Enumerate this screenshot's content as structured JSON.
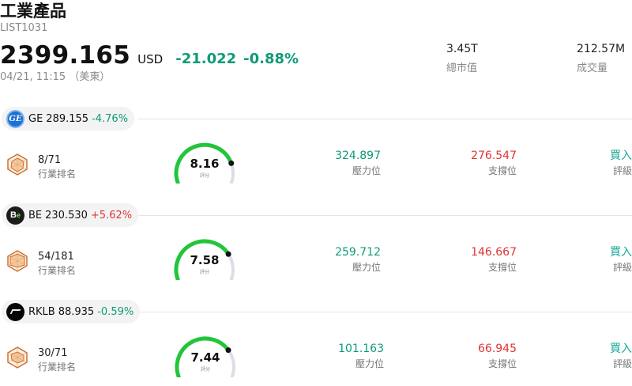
{
  "header": {
    "title": "工業產品",
    "code": "LIST1031",
    "price": "2399.165",
    "currency": "USD",
    "change": "-21.022",
    "change_pct": "-0.88%",
    "time": "04/21, 11:15 （美東）",
    "market_cap_value": "3.45T",
    "market_cap_label": "總市值",
    "volume_value": "212.57M",
    "volume_label": "成交量"
  },
  "colors": {
    "up": "#e03434",
    "down": "#0f9b77",
    "gauge_fill": "#22c53a",
    "gauge_track": "#dddde6",
    "radar": "#c96a24"
  },
  "stocks": [
    {
      "symbol": "GE",
      "price": "289.155",
      "change_pct": "-4.76%",
      "direction": "down",
      "logo": "ge-logo-icon",
      "rank": "8/71",
      "rank_label": "行業排名",
      "score": "8.16",
      "score_value": 8.16,
      "score_label": "評分",
      "resistance": "324.897",
      "resistance_label": "壓力位",
      "support": "276.547",
      "support_label": "支撐位",
      "rating": "買入",
      "rating_label": "評級"
    },
    {
      "symbol": "BE",
      "price": "230.530",
      "change_pct": "+5.62%",
      "direction": "up",
      "logo": "be-logo-icon",
      "rank": "54/181",
      "rank_label": "行業排名",
      "score": "7.58",
      "score_value": 7.58,
      "score_label": "評分",
      "resistance": "259.712",
      "resistance_label": "壓力位",
      "support": "146.667",
      "support_label": "支撐位",
      "rating": "買入",
      "rating_label": "評級"
    },
    {
      "symbol": "RKLB",
      "price": "88.935",
      "change_pct": "-0.59%",
      "direction": "down",
      "logo": "rklb-logo-icon",
      "rank": "30/71",
      "rank_label": "行業排名",
      "score": "7.44",
      "score_value": 7.44,
      "score_label": "評分",
      "resistance": "101.163",
      "resistance_label": "壓力位",
      "support": "66.945",
      "support_label": "支撐位",
      "rating": "買入",
      "rating_label": "評級"
    }
  ]
}
